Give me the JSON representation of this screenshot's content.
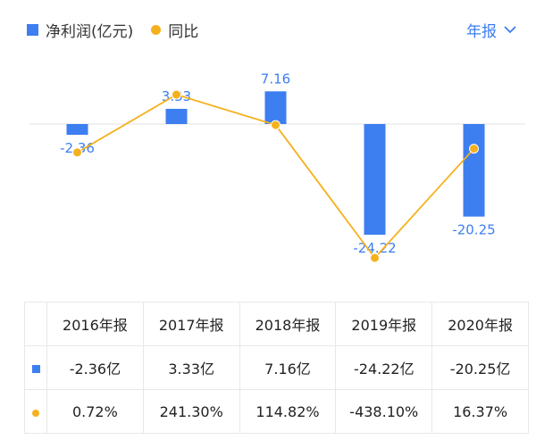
{
  "legend": {
    "bar_label": "净利润(亿元)",
    "line_label": "同比"
  },
  "period_selector": {
    "label": "年报"
  },
  "colors": {
    "bar": "#3d7ef0",
    "line": "#f5b11d",
    "positive": "#e53935",
    "negative": "#17a34a"
  },
  "chart_data": {
    "type": "bar",
    "categories": [
      "2016年报",
      "2017年报",
      "2018年报",
      "2019年报",
      "2020年报"
    ],
    "series": [
      {
        "name": "净利润(亿元)",
        "type": "bar",
        "values": [
          -2.36,
          3.33,
          7.16,
          -24.22,
          -20.25
        ],
        "labels": [
          "-2.36",
          "3.33",
          "7.16",
          "-24.22",
          "-20.25"
        ]
      },
      {
        "name": "同比",
        "type": "line",
        "values": [
          0.72,
          241.3,
          114.82,
          -438.1,
          16.37
        ]
      }
    ]
  },
  "table": {
    "headers": [
      "2016年报",
      "2017年报",
      "2018年报",
      "2019年报",
      "2020年报"
    ],
    "profit_row": [
      "-2.36亿",
      "3.33亿",
      "7.16亿",
      "-24.22亿",
      "-20.25亿"
    ],
    "yoy_row": [
      "0.72%",
      "241.30%",
      "114.82%",
      "-438.10%",
      "16.37%"
    ]
  }
}
